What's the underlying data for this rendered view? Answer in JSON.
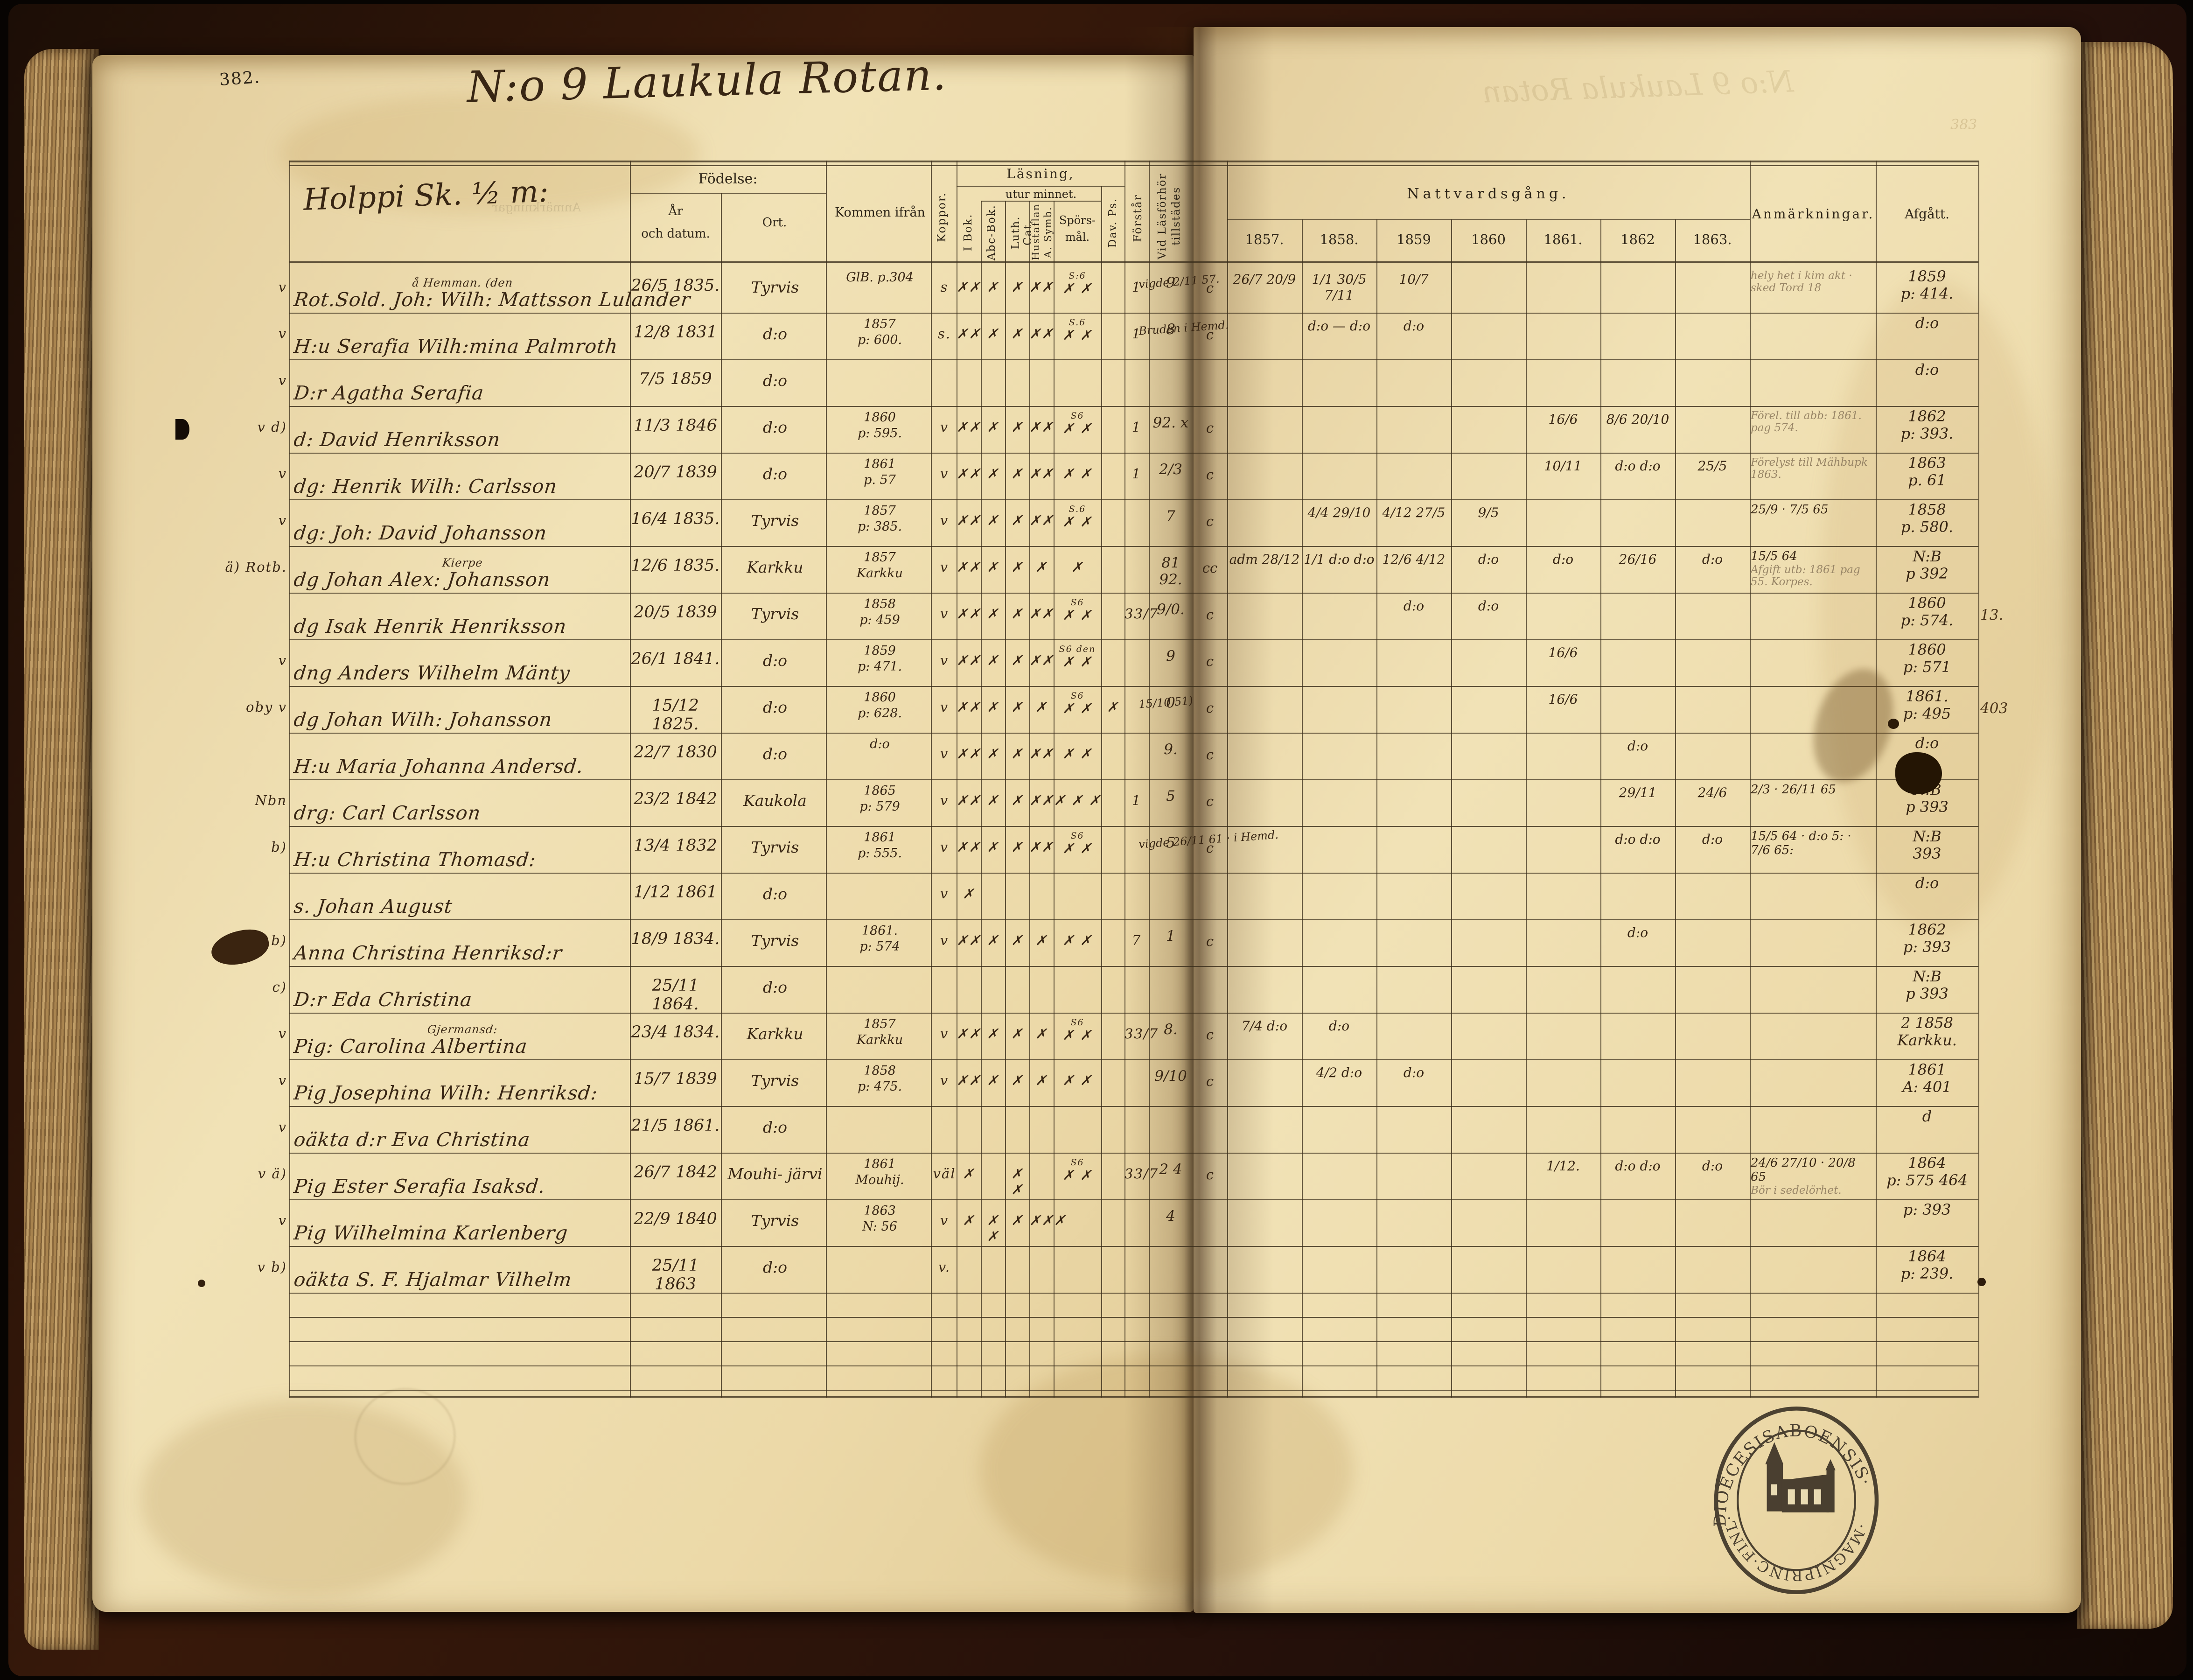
{
  "page": {
    "number": "382.",
    "title": "N:o 9 Laukula Rotan.",
    "household": "Holppi Sk. ½ m:"
  },
  "headers": {
    "fodelse": "Födelse:",
    "ar1": "År",
    "ar2": "och datum.",
    "ort": "Ort.",
    "kommen": "Kommen ifrån",
    "koppor": "Koppor.",
    "lasning": "Läsning,",
    "utur": "utur minnet.",
    "ibok": "I Bok.",
    "abc": "Abc-Bok.",
    "luth": "Luth. Cat.",
    "hust1": "Hustaflan",
    "hust2": "A. Symb.",
    "spors1": "Spörs-",
    "spors2": "mål.",
    "davps": "Dav. Ps.",
    "forstar": "Förstår",
    "vidlas1": "Vid Läsförhör",
    "vidlas2": "tillstädes",
    "nattv": "Nattvardsgång.",
    "years": [
      "1857.",
      "1858.",
      "1859",
      "1860",
      "1861.",
      "1862",
      "1863."
    ],
    "anm": "Anmärkningar.",
    "afgatt": "Afgått."
  },
  "stamp": {
    "top": "DIOECESISABOENSIS·",
    "bottom": "·MAGNIPRINC·FINL·"
  },
  "faint": {
    "bleed_title": "N:o 9 Laukula Rotan",
    "bleed_anm": "Anmärkningar",
    "corner": "383"
  },
  "rows": [
    {
      "m": "v",
      "sup": "å Hemman.  (den",
      "name": "Rot.Sold. Joh: Wilh: Mattsson Lulander",
      "b": "26/5 1835.",
      "o": "Tyrvis",
      "k1": "GlB. p.304",
      "k2": "",
      "kp": "s",
      "i": "✗✗",
      "a": "✗",
      "l": "✗",
      "h": "✗✗",
      "ss": "S:6",
      "s": "✗ ✗",
      "d": "",
      "f": "1",
      "v": "9",
      "fn": "vigde 2/11 57.",
      "c": "c",
      "y": [
        "26/7 20/9",
        "1/1 30/5 7/11",
        "10/7",
        "",
        "",
        "",
        ""
      ],
      "an": "",
      "ap": "hely het i kim akt · sked Tord 18",
      "af": [
        "1859",
        "p: 414."
      ],
      "afm": ""
    },
    {
      "m": "v",
      "name": "H:u Serafia Wilh:mina Palmroth",
      "b": "12/8 1831",
      "o": "d:o",
      "k1": "1857",
      "k2": "p: 600.",
      "kp": "s.",
      "i": "✗✗",
      "a": "✗",
      "l": "✗",
      "h": "✗✗",
      "ss": "S.6",
      "s": "✗ ✗",
      "f": "1",
      "v": "8",
      "fn": "Bruden i Hemd.",
      "c": "c",
      "y": [
        "",
        "d:o — d:o",
        "d:o",
        "",
        "",
        "",
        ""
      ],
      "af": [
        "d:o"
      ]
    },
    {
      "m": "v",
      "name": "D:r Agatha Serafia",
      "b": "7/5 1859",
      "o": "d:o",
      "af": [
        "d:o"
      ]
    },
    {
      "m": "v d)",
      "name": "d: David Henriksson",
      "b": "11/3 1846",
      "o": "d:o",
      "k1": "1860",
      "k2": "p: 595.",
      "kp": "v",
      "i": "✗✗",
      "a": "✗",
      "l": "✗",
      "h": "✗✗",
      "ss": "S6",
      "s": "✗ ✗",
      "f": "1",
      "v": "92. x",
      "c": "c",
      "y": [
        "",
        "",
        "",
        "",
        "16/6",
        "8/6 20/10",
        ""
      ],
      "ap": "Förel. till abb: 1861. pag 574.",
      "af": [
        "1862",
        "p: 393."
      ]
    },
    {
      "m": "v",
      "name": "dg: Henrik Wilh: Carlsson",
      "b": "20/7 1839",
      "o": "d:o",
      "k1": "1861",
      "k2": "p. 57",
      "kp": "v",
      "i": "✗✗",
      "a": "✗",
      "l": "✗",
      "h": "✗✗",
      "ss": "",
      "s": "✗ ✗",
      "f": "1",
      "v": "2/3",
      "c": "c",
      "y": [
        "",
        "",
        "",
        "",
        "10/11",
        "d:o d:o",
        "25/5"
      ],
      "ap": "Förelyst till Mähbupk 1863.",
      "af": [
        "1863",
        "p. 61"
      ]
    },
    {
      "m": "v",
      "name": "dg: Joh: David Johansson",
      "b": "16/4 1835.",
      "o": "Tyrvis",
      "k1": "1857",
      "k2": "p: 385.",
      "kp": "v",
      "i": "✗✗",
      "a": "✗",
      "l": "✗",
      "h": "✗✗",
      "ss": "S.6",
      "s": "✗ ✗",
      "f": "",
      "v": "7",
      "c": "c",
      "y": [
        "",
        "4/4 29/10",
        "4/12 27/5",
        "9/5",
        "",
        "",
        ""
      ],
      "an": "25/9 · 7/5 65",
      "af": [
        "1858",
        "p. 580."
      ]
    },
    {
      "m": "ä) Rotb.",
      "sup": "Kierpe",
      "name": "dg Johan Alex: Johansson",
      "b": "12/6 1835.",
      "o": "Karkku",
      "k1": "1857",
      "k2": "Karkku",
      "kp": "v",
      "i": "✗✗",
      "a": "✗",
      "l": "✗",
      "h": "✗",
      "ss": "",
      "s": "✗",
      "f": "",
      "v": "81 92.",
      "c": "cc",
      "y": [
        "adm 28/12",
        "1/1 d:o d:o",
        "12/6 4/12",
        "d:o",
        "d:o",
        "26/16",
        "d:o"
      ],
      "an": "15/5 64",
      "ap": "Afgift utb: 1861 pag 55. Korpes.",
      "af": [
        "N:B",
        "p 392"
      ]
    },
    {
      "m": "",
      "name": "dg Isak Henrik Henriksson",
      "b": "20/5 1839",
      "o": "Tyrvis",
      "k1": "1858",
      "k2": "p: 459",
      "kp": "v",
      "i": "✗✗",
      "a": "✗",
      "l": "✗",
      "h": "✗✗",
      "ss": "S6",
      "s": "✗ ✗",
      "f": "33/7",
      "v": "9/0.",
      "c": "c",
      "y": [
        "",
        "",
        "d:o",
        "d:o",
        "",
        "",
        ""
      ],
      "af": [
        "1860",
        "p: 574."
      ],
      "afm": "13."
    },
    {
      "m": "v",
      "name": "dng Anders Wilhelm Mänty",
      "b": "26/1 1841.",
      "o": "d:o",
      "k1": "1859",
      "k2": "p: 471.",
      "kp": "v",
      "i": "✗✗",
      "a": "✗",
      "l": "✗",
      "h": "✗✗",
      "ss": "S6 den",
      "s": "✗ ✗",
      "v": "9",
      "c": "c",
      "y": [
        "",
        "",
        "",
        "",
        "16/6",
        "",
        ""
      ],
      "af": [
        "1860",
        "p: 571"
      ]
    },
    {
      "m": "oby v",
      "name": "dg Johan Wilh: Johansson",
      "b": "15/12 1825.",
      "o": "d:o",
      "k1": "1860",
      "k2": "p: 628.",
      "kp": "v",
      "i": "✗✗",
      "a": "✗",
      "l": "✗",
      "h": "✗",
      "ss": "S6",
      "s": "✗ ✗",
      "d": "✗",
      "v": "0",
      "fn": "15/10 51)",
      "c": "c",
      "y": [
        "",
        "",
        "",
        "",
        "16/6",
        "",
        ""
      ],
      "af": [
        "1861.",
        "p: 495"
      ],
      "afm": "403"
    },
    {
      "m": "",
      "name": "H:u Maria Johanna Andersd.",
      "b": "22/7 1830",
      "o": "d:o",
      "k1": "d:o",
      "kp": "v",
      "i": "✗✗",
      "a": "✗",
      "l": "✗",
      "h": "✗✗",
      "ss": "",
      "s": "✗ ✗",
      "v": "9.",
      "c": "c",
      "y": [
        "",
        "",
        "",
        "",
        "",
        "d:o",
        ""
      ],
      "af": [
        "d:o"
      ]
    },
    {
      "m": "Nbn",
      "name": "drg: Carl Carlsson",
      "b": "23/2 1842",
      "o": "Kaukola",
      "k1": "1865",
      "k2": "p: 579",
      "kp": "v",
      "i": "✗✗",
      "a": "✗",
      "l": "✗",
      "h": "✗✗",
      "ss": "",
      "s": "✗ ✗ ✗",
      "f": "1",
      "v": "5",
      "c": "c",
      "y": [
        "",
        "",
        "",
        "",
        "",
        "29/11",
        "24/6"
      ],
      "an": "2/3 · 26/11 65",
      "af": [
        "N:B",
        "p 393"
      ]
    },
    {
      "m": "b)",
      "name": "H:u Christina Thomasd:",
      "b": "13/4 1832",
      "o": "Tyrvis",
      "k1": "1861",
      "k2": "p: 555.",
      "kp": "v",
      "i": "✗✗",
      "a": "✗",
      "l": "✗",
      "h": "✗✗",
      "ss": "S6",
      "s": "✗ ✗",
      "f": "",
      "v": "5",
      "fn": "vigde 26/11 61 · i Hemd.",
      "c": "c",
      "y": [
        "",
        "",
        "",
        "",
        "",
        "d:o d:o",
        "d:o"
      ],
      "an": "15/5 64 · d:o 5: · 7/6 65:",
      "af": [
        "N:B",
        "393"
      ]
    },
    {
      "m": "",
      "name": "s. Johan August",
      "b": "1/12 1861",
      "o": "d:o",
      "kp": "v",
      "i": "✗",
      "af": [
        "d:o"
      ]
    },
    {
      "m": "v b)",
      "name": "Anna Christina Henriksd:r",
      "b": "18/9 1834.",
      "o": "Tyrvis",
      "k1": "1861.",
      "k2": "p: 574",
      "kp": "v",
      "i": "✗✗",
      "a": "✗",
      "l": "✗",
      "h": "✗",
      "ss": "",
      "s": "✗ ✗",
      "f": "7",
      "v": "1",
      "c": "c",
      "y": [
        "",
        "",
        "",
        "",
        "",
        "d:o",
        ""
      ],
      "af": [
        "1862",
        "p: 393"
      ]
    },
    {
      "m": "c)",
      "name": "D:r Eda Christina",
      "b": "25/11 1864.",
      "o": "d:o",
      "af": [
        "N:B",
        "p 393"
      ]
    },
    {
      "m": "v",
      "sup": "Gjermansd:",
      "name": "Pig: Carolina Albertina",
      "b": "23/4 1834.",
      "o": "Karkku",
      "k1": "1857",
      "k2": "Karkku",
      "kp": "v",
      "i": "✗✗",
      "a": "✗",
      "l": "✗",
      "h": "✗",
      "ss": "S6",
      "s": "✗ ✗",
      "f": "33/7",
      "v": "8.",
      "c": "c",
      "y": [
        "7/4 d:o",
        "d:o",
        "",
        "",
        "",
        "",
        ""
      ],
      "af": [
        "2 1858",
        "Karkku."
      ]
    },
    {
      "m": "v",
      "name": "Pig Josephina Wilh: Henriksd:",
      "b": "15/7 1839",
      "o": "Tyrvis",
      "k1": "1858",
      "k2": "p: 475.",
      "kp": "v",
      "i": "✗✗",
      "a": "✗",
      "l": "✗",
      "h": "✗",
      "ss": "",
      "s": "✗ ✗",
      "v": "9/10",
      "c": "c",
      "y": [
        "",
        "4/2 d:o",
        "d:o",
        "",
        "",
        "",
        ""
      ],
      "af": [
        "1861",
        "A: 401"
      ]
    },
    {
      "m": "v",
      "name": "oäkta d:r Eva Christina",
      "b": "21/5 1861.",
      "o": "d:o",
      "af": [
        "d"
      ]
    },
    {
      "m": "v ä)",
      "name": "Pig Ester Serafia Isaksd.",
      "b": "26/7 1842",
      "o": "Mouhi- järvi",
      "k1": "1861",
      "k2": "Mouhij.",
      "kp": "väl",
      "i": "✗",
      "a": "",
      "l": "✗ ✗",
      "h": "",
      "ss": "S6",
      "s": "✗ ✗",
      "f": "33/7",
      "v": "2 4",
      "c": "c",
      "y": [
        "",
        "",
        "",
        "",
        "1/12.",
        "d:o d:o",
        "d:o"
      ],
      "an": "24/6 27/10 · 20/8 65",
      "ap": "Bör i sedelörhet.",
      "af": [
        "1864",
        "p: 575 464"
      ]
    },
    {
      "m": "v",
      "name": "Pig Wilhelmina Karlenberg",
      "b": "22/9 1840",
      "o": "Tyrvis",
      "k1": "1863",
      "k2": "N: 56",
      "kp": "v",
      "i": "✗",
      "a": "✗ ✗",
      "l": "✗",
      "h": "✗✗✗",
      "ss": "",
      "s": "",
      "v": "4",
      "c": "",
      "y": [],
      "af": [
        "p: 393"
      ]
    },
    {
      "m": "v b)",
      "name": "oäkta S. F. Hjalmar Vilhelm",
      "b": "25/11 1863",
      "o": "d:o",
      "kp": "v.",
      "af": [
        "1864",
        "p: 239."
      ]
    }
  ]
}
